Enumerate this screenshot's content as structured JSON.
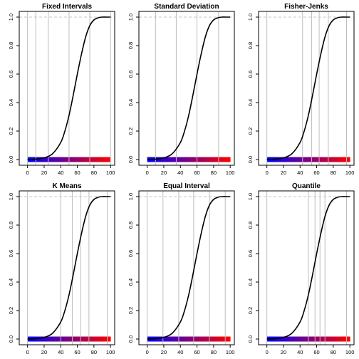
{
  "figure": {
    "colors": {
      "low": "#0000ff",
      "high": "#ff0000",
      "vline": "#bdbdbd",
      "ref": "#c4c4c4",
      "curve": "#000000",
      "frame": "#000000"
    }
  },
  "chart_data": [
    {
      "type": "line",
      "title": "Fixed Intervals",
      "xlabel": "",
      "ylabel": "",
      "xlim": [
        -10,
        105
      ],
      "ylim": [
        -0.04,
        1.04
      ],
      "x_ticks": [
        0,
        20,
        40,
        60,
        80,
        100
      ],
      "y_ticks": [
        0.0,
        0.2,
        0.4,
        0.6,
        0.8,
        1.0
      ],
      "breaks": [
        0,
        10,
        25,
        50,
        75,
        100
      ],
      "ref_line_y": 1.0,
      "series": [
        {
          "kind": "cumulative",
          "x": [
            0,
            10,
            20,
            30,
            40,
            45,
            50,
            55,
            60,
            65,
            70,
            75,
            80,
            85,
            90,
            95,
            100
          ],
          "y": [
            0,
            0.003,
            0.012,
            0.04,
            0.12,
            0.2,
            0.31,
            0.45,
            0.6,
            0.74,
            0.86,
            0.94,
            0.98,
            0.995,
            1,
            1,
            1
          ]
        }
      ]
    },
    {
      "type": "line",
      "title": "Standard Deviation",
      "xlabel": "",
      "ylabel": "",
      "xlim": [
        -10,
        105
      ],
      "ylim": [
        -0.04,
        1.04
      ],
      "x_ticks": [
        0,
        20,
        40,
        60,
        80,
        100
      ],
      "y_ticks": [
        0.0,
        0.2,
        0.4,
        0.6,
        0.8,
        1.0
      ],
      "breaks": [
        10,
        35,
        60,
        86
      ],
      "ref_line_y": 1.0,
      "series": [
        {
          "kind": "cumulative",
          "x": [
            0,
            10,
            20,
            30,
            40,
            45,
            50,
            55,
            60,
            65,
            70,
            75,
            80,
            85,
            90,
            95,
            100
          ],
          "y": [
            0,
            0.003,
            0.012,
            0.04,
            0.12,
            0.2,
            0.31,
            0.45,
            0.6,
            0.74,
            0.86,
            0.94,
            0.98,
            0.995,
            1,
            1,
            1
          ]
        }
      ]
    },
    {
      "type": "line",
      "title": "Fisher-Jenks",
      "xlabel": "",
      "ylabel": "",
      "xlim": [
        -10,
        105
      ],
      "ylim": [
        -0.04,
        1.04
      ],
      "x_ticks": [
        0,
        20,
        40,
        60,
        80,
        100
      ],
      "y_ticks": [
        0.0,
        0.2,
        0.4,
        0.6,
        0.8,
        1.0
      ],
      "breaks": [
        0,
        43,
        54,
        63,
        74,
        96
      ],
      "ref_line_y": 1.0,
      "series": [
        {
          "kind": "cumulative",
          "x": [
            0,
            10,
            20,
            30,
            40,
            45,
            50,
            55,
            60,
            65,
            70,
            75,
            80,
            85,
            90,
            95,
            100
          ],
          "y": [
            0,
            0.003,
            0.012,
            0.04,
            0.12,
            0.2,
            0.31,
            0.45,
            0.6,
            0.74,
            0.86,
            0.94,
            0.98,
            0.995,
            1,
            1,
            1
          ]
        }
      ]
    },
    {
      "type": "line",
      "title": "K Means",
      "xlabel": "",
      "ylabel": "",
      "xlim": [
        -10,
        105
      ],
      "ylim": [
        -0.04,
        1.04
      ],
      "x_ticks": [
        0,
        20,
        40,
        60,
        80,
        100
      ],
      "y_ticks": [
        0.0,
        0.2,
        0.4,
        0.6,
        0.8,
        1.0
      ],
      "breaks": [
        0,
        40,
        54,
        64,
        74,
        96
      ],
      "ref_line_y": 1.0,
      "series": [
        {
          "kind": "cumulative",
          "x": [
            0,
            10,
            20,
            30,
            40,
            45,
            50,
            55,
            60,
            65,
            70,
            75,
            80,
            85,
            90,
            95,
            100
          ],
          "y": [
            0,
            0.003,
            0.012,
            0.04,
            0.12,
            0.2,
            0.31,
            0.45,
            0.6,
            0.74,
            0.86,
            0.94,
            0.98,
            0.995,
            1,
            1,
            1
          ]
        }
      ]
    },
    {
      "type": "line",
      "title": "Equal Interval",
      "xlabel": "",
      "ylabel": "",
      "xlim": [
        -10,
        105
      ],
      "ylim": [
        -0.04,
        1.04
      ],
      "x_ticks": [
        0,
        20,
        40,
        60,
        80,
        100
      ],
      "y_ticks": [
        0.0,
        0.2,
        0.4,
        0.6,
        0.8,
        1.0
      ],
      "breaks": [
        0,
        19,
        38,
        56,
        75,
        94
      ],
      "ref_line_y": 1.0,
      "series": [
        {
          "kind": "cumulative",
          "x": [
            0,
            10,
            20,
            30,
            40,
            45,
            50,
            55,
            60,
            65,
            70,
            75,
            80,
            85,
            90,
            95,
            100
          ],
          "y": [
            0,
            0.003,
            0.012,
            0.04,
            0.12,
            0.2,
            0.31,
            0.45,
            0.6,
            0.74,
            0.86,
            0.94,
            0.98,
            0.995,
            1,
            1,
            1
          ]
        }
      ]
    },
    {
      "type": "line",
      "title": "Quantile",
      "xlabel": "",
      "ylabel": "",
      "xlim": [
        -10,
        105
      ],
      "ylim": [
        -0.04,
        1.04
      ],
      "x_ticks": [
        0,
        20,
        40,
        60,
        80,
        100
      ],
      "y_ticks": [
        0.0,
        0.2,
        0.4,
        0.6,
        0.8,
        1.0
      ],
      "breaks": [
        0,
        50,
        58,
        64,
        70,
        96
      ],
      "ref_line_y": 1.0,
      "series": [
        {
          "kind": "cumulative",
          "x": [
            0,
            10,
            20,
            30,
            40,
            45,
            50,
            55,
            60,
            65,
            70,
            75,
            80,
            85,
            90,
            95,
            100
          ],
          "y": [
            0,
            0.003,
            0.012,
            0.04,
            0.12,
            0.2,
            0.31,
            0.45,
            0.6,
            0.74,
            0.86,
            0.94,
            0.98,
            0.995,
            1,
            1,
            1
          ]
        }
      ]
    }
  ]
}
